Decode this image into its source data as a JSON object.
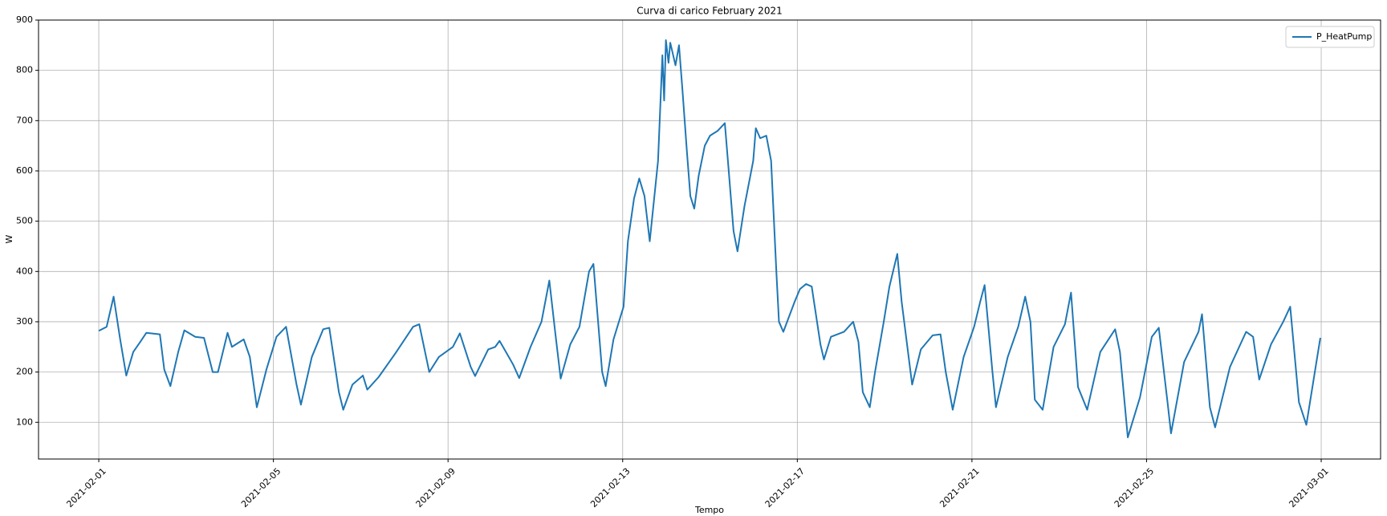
{
  "chart_data": {
    "type": "line",
    "title": "Curva di carico February 2021",
    "xlabel": "Tempo",
    "ylabel": "W",
    "x": [
      0,
      0.18,
      0.34,
      0.49,
      0.63,
      0.79,
      0.95,
      1.09,
      1.4,
      1.5,
      1.64,
      1.82,
      1.96,
      2.21,
      2.41,
      2.61,
      2.73,
      2.95,
      3.05,
      3.32,
      3.46,
      3.62,
      3.84,
      4.07,
      4.29,
      4.53,
      4.63,
      4.88,
      5.14,
      5.28,
      5.5,
      5.6,
      5.81,
      6.05,
      6.15,
      6.41,
      6.8,
      7.2,
      7.34,
      7.57,
      7.79,
      8.11,
      8.27,
      8.52,
      8.62,
      8.92,
      9.08,
      9.18,
      9.49,
      9.63,
      9.89,
      10.14,
      10.32,
      10.46,
      10.58,
      10.8,
      11.01,
      11.23,
      11.33,
      11.53,
      11.61,
      11.79,
      12.02,
      12.12,
      12.26,
      12.38,
      12.5,
      12.62,
      12.81,
      12.91,
      12.95,
      12.99,
      13.05,
      13.09,
      13.21,
      13.29,
      13.37,
      13.47,
      13.55,
      13.64,
      13.74,
      13.88,
      14,
      14.18,
      14.34,
      14.42,
      14.54,
      14.63,
      14.79,
      14.99,
      15.05,
      15.15,
      15.29,
      15.4,
      15.52,
      15.58,
      15.68,
      15.94,
      16.06,
      16.2,
      16.33,
      16.53,
      16.61,
      16.77,
      17.07,
      17.28,
      17.4,
      17.5,
      17.66,
      17.78,
      17.98,
      18.11,
      18.29,
      18.39,
      18.63,
      18.83,
      19.1,
      19.28,
      19.4,
      19.56,
      19.81,
      20.05,
      20.19,
      20.29,
      20.47,
      20.55,
      20.82,
      21.06,
      21.22,
      21.34,
      21.44,
      21.62,
      21.87,
      22.13,
      22.27,
      22.43,
      22.64,
      22.94,
      23.28,
      23.39,
      23.57,
      23.85,
      24.12,
      24.28,
      24.48,
      24.56,
      24.86,
      25.19,
      25.27,
      25.45,
      25.57,
      25.91,
      26.28,
      26.44,
      26.58,
      26.85,
      27.13,
      27.29,
      27.49,
      27.66,
      27.9,
      27.98
    ],
    "series": [
      {
        "name": "P_HeatPump",
        "color": "#1f77b4",
        "values": [
          282,
          290,
          350,
          265,
          193,
          240,
          260,
          278,
          275,
          205,
          172,
          240,
          283,
          270,
          268,
          200,
          200,
          278,
          250,
          265,
          230,
          130,
          205,
          270,
          290,
          175,
          135,
          230,
          285,
          288,
          160,
          125,
          175,
          193,
          165,
          190,
          238,
          290,
          295,
          200,
          230,
          250,
          277,
          210,
          192,
          245,
          250,
          262,
          215,
          188,
          250,
          300,
          382,
          275,
          187,
          255,
          290,
          400,
          415,
          200,
          172,
          265,
          330,
          460,
          545,
          585,
          550,
          460,
          620,
          830,
          740,
          860,
          815,
          855,
          810,
          850,
          760,
          640,
          550,
          525,
          590,
          650,
          670,
          680,
          695,
          610,
          480,
          440,
          530,
          620,
          685,
          665,
          670,
          620,
          400,
          300,
          280,
          340,
          365,
          375,
          370,
          255,
          225,
          270,
          280,
          300,
          260,
          160,
          130,
          200,
          300,
          370,
          435,
          340,
          175,
          245,
          273,
          275,
          200,
          125,
          230,
          290,
          340,
          373,
          200,
          130,
          230,
          290,
          350,
          300,
          145,
          125,
          250,
          295,
          358,
          170,
          125,
          240,
          285,
          240,
          70,
          150,
          270,
          288,
          140,
          78,
          220,
          280,
          315,
          130,
          90,
          210,
          280,
          270,
          185,
          255,
          300,
          330,
          140,
          95,
          225,
          268
        ]
      }
    ],
    "xlim": [
      -1.38,
      29.36
    ],
    "ylim": [
      27,
      900
    ],
    "xticks": [
      {
        "value": 0,
        "label": "2021-02-01"
      },
      {
        "value": 4,
        "label": "2021-02-05"
      },
      {
        "value": 8,
        "label": "2021-02-09"
      },
      {
        "value": 12,
        "label": "2021-02-13"
      },
      {
        "value": 16,
        "label": "2021-02-17"
      },
      {
        "value": 20,
        "label": "2021-02-21"
      },
      {
        "value": 24,
        "label": "2021-02-25"
      },
      {
        "value": 28,
        "label": "2021-03-01"
      }
    ],
    "yticks": [
      100,
      200,
      300,
      400,
      500,
      600,
      700,
      800,
      900
    ],
    "grid": true,
    "legend": "upper right"
  }
}
